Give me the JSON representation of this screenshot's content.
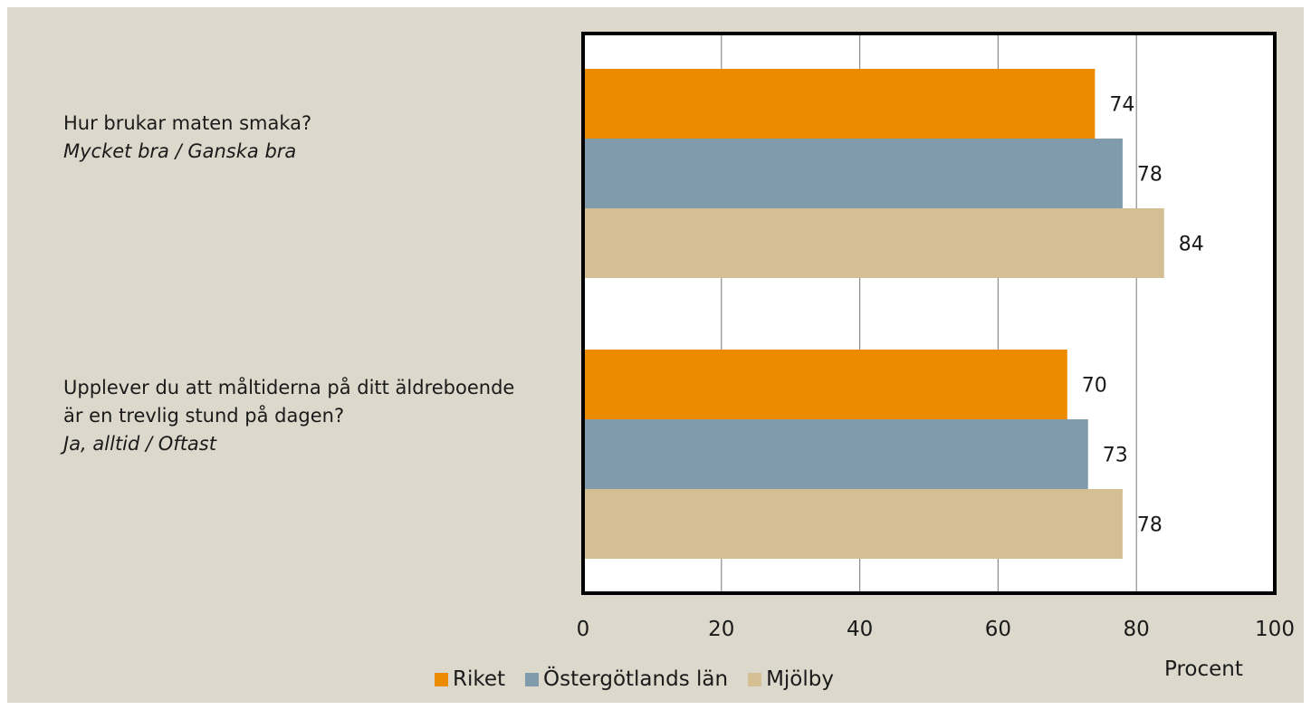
{
  "questions": [
    {
      "main": "Hur brukar maten smaka?",
      "sub": "Mycket bra / Ganska bra"
    },
    {
      "main": "Upplever du att måltiderna på ditt äldreboende är en trevlig stund på dagen?",
      "sub": "Ja, alltid / Oftast"
    }
  ],
  "x_unit": "Procent",
  "colors": {
    "background": "#dcd8cc",
    "riket": "#ec8a00",
    "ostergotland": "#7f9bac",
    "mjolby": "#d4bf95"
  },
  "chart_data": {
    "type": "bar",
    "orientation": "horizontal",
    "categories": [
      "Hur brukar maten smaka? Mycket bra / Ganska bra",
      "Upplever du att måltiderna på ditt äldreboende är en trevlig stund på dagen? Ja, alltid / Oftast"
    ],
    "series": [
      {
        "name": "Riket",
        "values": [
          74,
          70
        ],
        "color": "#ec8a00"
      },
      {
        "name": "Östergötlands län",
        "values": [
          78,
          73
        ],
        "color": "#7f9bac"
      },
      {
        "name": "Mjölby",
        "values": [
          84,
          78
        ],
        "color": "#d4bf95"
      }
    ],
    "xlabel": "Procent",
    "xlim": [
      0,
      100
    ],
    "xticks": [
      0,
      20,
      40,
      60,
      80,
      100
    ],
    "grid": true,
    "legend": "bottom"
  }
}
